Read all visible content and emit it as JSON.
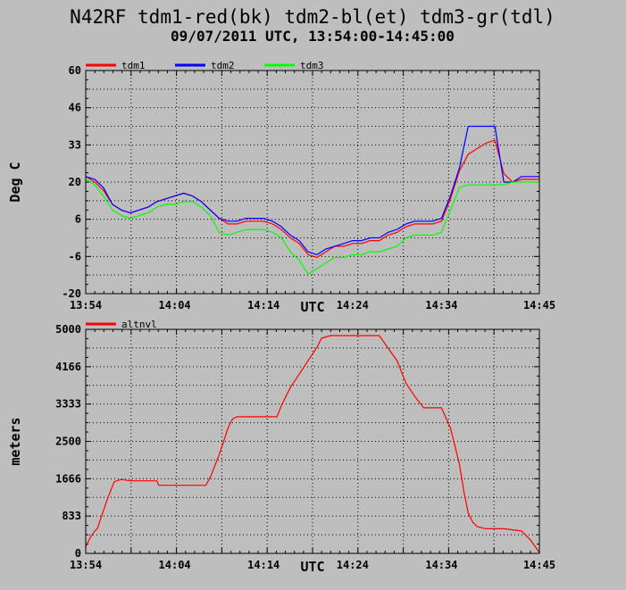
{
  "header": {
    "title": "N42RF tdm1-red(bk) tdm2-bl(et) tdm3-gr(tdl)",
    "subtitle": "09/07/2011   UTC, 13:54:00-14:45:00"
  },
  "chart_data": [
    {
      "type": "line",
      "xlabel": "UTC",
      "ylabel": "Deg C",
      "x_ticks": [
        "13:54",
        "14:04",
        "14:14",
        "14:24",
        "14:34",
        "14:45"
      ],
      "y_ticks": [
        "60",
        "46",
        "33",
        "20",
        "6",
        "-6",
        "-20"
      ],
      "xlim": [
        0,
        51
      ],
      "ylim": [
        -20,
        60
      ],
      "grid": true,
      "legend_position": "top-left",
      "series": [
        {
          "name": "tdm1",
          "color": "#ff0000",
          "points": [
            [
              0,
              22
            ],
            [
              1,
              20
            ],
            [
              2,
              17
            ],
            [
              3,
              12
            ],
            [
              4,
              10
            ],
            [
              5,
              9
            ],
            [
              6,
              10
            ],
            [
              7,
              11
            ],
            [
              8,
              13
            ],
            [
              9,
              14
            ],
            [
              10,
              15
            ],
            [
              11,
              16
            ],
            [
              12,
              15
            ],
            [
              13,
              13
            ],
            [
              14,
              10
            ],
            [
              15,
              7
            ],
            [
              16,
              5
            ],
            [
              17,
              5
            ],
            [
              18,
              6
            ],
            [
              19,
              6
            ],
            [
              20,
              6
            ],
            [
              21,
              5
            ],
            [
              22,
              3
            ],
            [
              23,
              0
            ],
            [
              24,
              -2
            ],
            [
              25,
              -6
            ],
            [
              26,
              -7
            ],
            [
              27,
              -5
            ],
            [
              28,
              -3
            ],
            [
              29,
              -3
            ],
            [
              30,
              -2
            ],
            [
              31,
              -2
            ],
            [
              32,
              -1
            ],
            [
              33,
              -1
            ],
            [
              34,
              1
            ],
            [
              35,
              2
            ],
            [
              36,
              4
            ],
            [
              37,
              5
            ],
            [
              38,
              5
            ],
            [
              39,
              5
            ],
            [
              40,
              6
            ],
            [
              41,
              14
            ],
            [
              42,
              24
            ],
            [
              43,
              30
            ],
            [
              44,
              32
            ],
            [
              45,
              34
            ],
            [
              46,
              35
            ],
            [
              47,
              23
            ],
            [
              48,
              20
            ],
            [
              49,
              21
            ],
            [
              50,
              21
            ],
            [
              51,
              21
            ]
          ]
        },
        {
          "name": "tdm2",
          "color": "#0000ff",
          "points": [
            [
              0,
              22
            ],
            [
              1,
              21
            ],
            [
              2,
              18
            ],
            [
              3,
              12
            ],
            [
              4,
              10
            ],
            [
              5,
              9
            ],
            [
              6,
              10
            ],
            [
              7,
              11
            ],
            [
              8,
              13
            ],
            [
              9,
              14
            ],
            [
              10,
              15
            ],
            [
              11,
              16
            ],
            [
              12,
              15
            ],
            [
              13,
              13
            ],
            [
              14,
              10
            ],
            [
              15,
              7
            ],
            [
              16,
              6
            ],
            [
              17,
              6
            ],
            [
              18,
              7
            ],
            [
              19,
              7
            ],
            [
              20,
              7
            ],
            [
              21,
              6
            ],
            [
              22,
              4
            ],
            [
              23,
              1
            ],
            [
              24,
              -1
            ],
            [
              25,
              -5
            ],
            [
              26,
              -6
            ],
            [
              27,
              -4
            ],
            [
              28,
              -3
            ],
            [
              29,
              -2
            ],
            [
              30,
              -1
            ],
            [
              31,
              -1
            ],
            [
              32,
              0
            ],
            [
              33,
              0
            ],
            [
              34,
              2
            ],
            [
              35,
              3
            ],
            [
              36,
              5
            ],
            [
              37,
              6
            ],
            [
              38,
              6
            ],
            [
              39,
              6
            ],
            [
              40,
              7
            ],
            [
              41,
              15
            ],
            [
              42,
              25
            ],
            [
              43,
              40
            ],
            [
              44,
              40
            ],
            [
              45,
              40
            ],
            [
              46,
              40
            ],
            [
              47,
              20
            ],
            [
              48,
              20
            ],
            [
              49,
              22
            ],
            [
              50,
              22
            ],
            [
              51,
              22
            ]
          ]
        },
        {
          "name": "tdm3",
          "color": "#00ff00",
          "points": [
            [
              0,
              21
            ],
            [
              1,
              19
            ],
            [
              2,
              15
            ],
            [
              3,
              10
            ],
            [
              4,
              8
            ],
            [
              5,
              7
            ],
            [
              6,
              8
            ],
            [
              7,
              9
            ],
            [
              8,
              11
            ],
            [
              9,
              12
            ],
            [
              10,
              12
            ],
            [
              11,
              13
            ],
            [
              12,
              13
            ],
            [
              13,
              11
            ],
            [
              14,
              8
            ],
            [
              15,
              2
            ],
            [
              16,
              1
            ],
            [
              17,
              2
            ],
            [
              18,
              3
            ],
            [
              19,
              3
            ],
            [
              20,
              3
            ],
            [
              21,
              2
            ],
            [
              22,
              0
            ],
            [
              23,
              -5
            ],
            [
              24,
              -8
            ],
            [
              25,
              -13
            ],
            [
              26,
              -11
            ],
            [
              27,
              -9
            ],
            [
              28,
              -7
            ],
            [
              29,
              -7
            ],
            [
              30,
              -6
            ],
            [
              31,
              -6
            ],
            [
              32,
              -5
            ],
            [
              33,
              -5
            ],
            [
              34,
              -4
            ],
            [
              35,
              -3
            ],
            [
              36,
              0
            ],
            [
              37,
              1
            ],
            [
              38,
              1
            ],
            [
              39,
              1
            ],
            [
              40,
              2
            ],
            [
              41,
              10
            ],
            [
              42,
              18
            ],
            [
              43,
              19
            ],
            [
              44,
              19
            ],
            [
              45,
              19
            ],
            [
              46,
              19
            ],
            [
              47,
              19
            ],
            [
              48,
              20
            ],
            [
              49,
              20
            ],
            [
              50,
              20
            ],
            [
              51,
              20
            ]
          ]
        }
      ]
    },
    {
      "type": "line",
      "xlabel": "UTC",
      "ylabel": "meters",
      "x_ticks": [
        "13:54",
        "14:04",
        "14:14",
        "14:24",
        "14:34",
        "14:45"
      ],
      "y_ticks": [
        "5000",
        "4166",
        "3333",
        "2500",
        "1666",
        "833",
        "0"
      ],
      "xlim": [
        0,
        51
      ],
      "ylim": [
        0,
        5000
      ],
      "grid": true,
      "legend_position": "top-left",
      "series": [
        {
          "name": "altnvl",
          "color": "#ff0000",
          "points": [
            [
              0,
              150
            ],
            [
              0.5,
              350
            ],
            [
              1,
              500
            ],
            [
              1.3,
              550
            ],
            [
              2.5,
              1250
            ],
            [
              3.2,
              1600
            ],
            [
              4,
              1650
            ],
            [
              5,
              1620
            ],
            [
              8,
              1620
            ],
            [
              8.2,
              1520
            ],
            [
              13.5,
              1520
            ],
            [
              14,
              1700
            ],
            [
              15,
              2200
            ],
            [
              15.5,
              2500
            ],
            [
              16,
              2800
            ],
            [
              16.5,
              3000
            ],
            [
              17,
              3050
            ],
            [
              21.5,
              3050
            ],
            [
              22,
              3300
            ],
            [
              23,
              3700
            ],
            [
              24,
              4000
            ],
            [
              25,
              4300
            ],
            [
              26,
              4600
            ],
            [
              26.5,
              4800
            ],
            [
              27.5,
              4860
            ],
            [
              30,
              4860
            ],
            [
              33,
              4860
            ],
            [
              35,
              4300
            ],
            [
              36,
              3800
            ],
            [
              37,
              3500
            ],
            [
              38,
              3250
            ],
            [
              40,
              3250
            ],
            [
              41,
              2800
            ],
            [
              42,
              2000
            ],
            [
              42.5,
              1400
            ],
            [
              43,
              900
            ],
            [
              43.5,
              700
            ],
            [
              44,
              600
            ],
            [
              45,
              550
            ],
            [
              47,
              550
            ],
            [
              49,
              500
            ],
            [
              50,
              300
            ],
            [
              51,
              20
            ]
          ]
        }
      ]
    }
  ]
}
